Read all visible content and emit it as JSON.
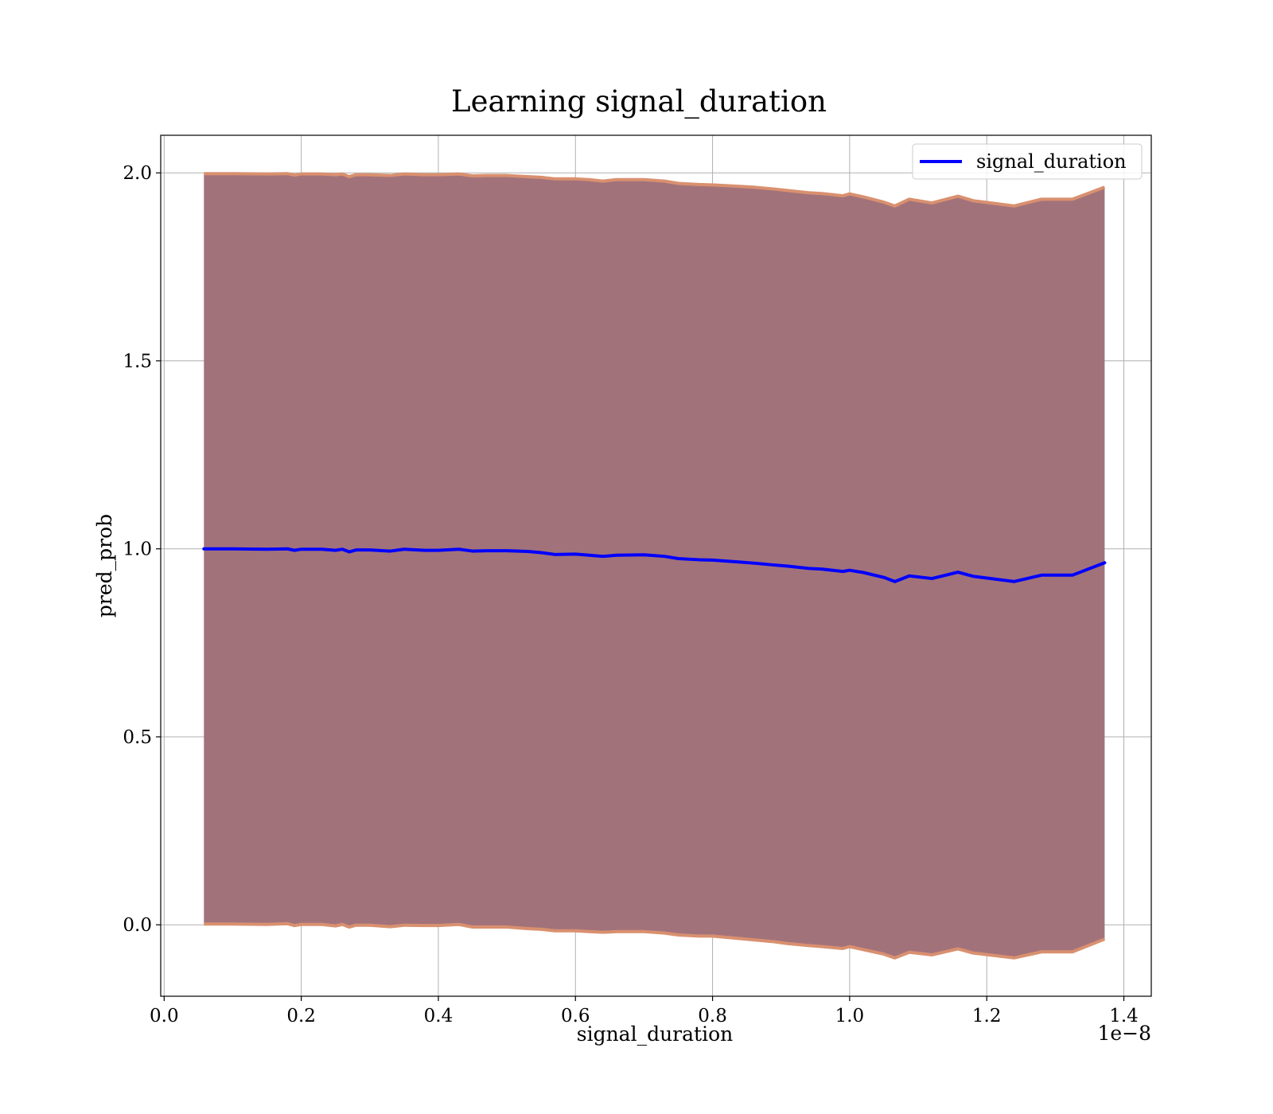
{
  "chart_data": {
    "type": "area",
    "title": "Learning signal_duration",
    "xlabel": "signal_duration",
    "ylabel": "pred_prob",
    "x_offset_label": "1e−8",
    "xlim": [
      -0.005,
      1.44
    ],
    "ylim": [
      -0.19,
      2.1
    ],
    "xticks": [
      0.0,
      0.2,
      0.4,
      0.6,
      0.8,
      1.0,
      1.2,
      1.4
    ],
    "xtick_labels": [
      "0.0",
      "0.2",
      "0.4",
      "0.6",
      "0.8",
      "1.0",
      "1.2",
      "1.4"
    ],
    "yticks": [
      0.0,
      0.5,
      1.0,
      1.5,
      2.0
    ],
    "ytick_labels": [
      "0.0",
      "0.5",
      "1.0",
      "1.5",
      "2.0"
    ],
    "grid": true,
    "legend_position": "top-right",
    "colors": {
      "line": "#0000ff",
      "band_fill": "#a2727b",
      "band_edge": "#d9906f",
      "grid": "#b0b0b0"
    },
    "series": [
      {
        "name": "signal_duration",
        "x": [
          0.058,
          0.1,
          0.15,
          0.18,
          0.19,
          0.2,
          0.23,
          0.25,
          0.26,
          0.27,
          0.28,
          0.3,
          0.33,
          0.35,
          0.38,
          0.4,
          0.43,
          0.45,
          0.47,
          0.5,
          0.53,
          0.55,
          0.57,
          0.6,
          0.62,
          0.64,
          0.66,
          0.7,
          0.73,
          0.75,
          0.78,
          0.8,
          0.83,
          0.86,
          0.89,
          0.91,
          0.94,
          0.96,
          0.99,
          1.0,
          1.02,
          1.05,
          1.066,
          1.087,
          1.12,
          1.158,
          1.18,
          1.24,
          1.28,
          1.325,
          1.372
        ],
        "y": [
          1.0,
          1.0,
          0.999,
          1.0,
          0.996,
          0.999,
          0.999,
          0.996,
          0.999,
          0.992,
          0.997,
          0.997,
          0.994,
          0.999,
          0.996,
          0.996,
          0.999,
          0.994,
          0.995,
          0.995,
          0.993,
          0.99,
          0.985,
          0.986,
          0.983,
          0.98,
          0.983,
          0.984,
          0.98,
          0.974,
          0.971,
          0.97,
          0.966,
          0.962,
          0.957,
          0.954,
          0.948,
          0.946,
          0.94,
          0.943,
          0.937,
          0.924,
          0.913,
          0.928,
          0.921,
          0.938,
          0.927,
          0.913,
          0.93,
          0.93,
          0.963
        ],
        "band_lower": [
          0.002,
          0.002,
          0.001,
          0.003,
          -0.002,
          0.001,
          0.001,
          -0.003,
          0.001,
          -0.006,
          -0.001,
          -0.001,
          -0.005,
          -0.001,
          -0.002,
          -0.002,
          0.001,
          -0.006,
          -0.006,
          -0.006,
          -0.01,
          -0.012,
          -0.016,
          -0.016,
          -0.018,
          -0.02,
          -0.018,
          -0.018,
          -0.022,
          -0.027,
          -0.03,
          -0.03,
          -0.035,
          -0.04,
          -0.045,
          -0.05,
          -0.055,
          -0.058,
          -0.063,
          -0.058,
          -0.066,
          -0.078,
          -0.088,
          -0.073,
          -0.08,
          -0.064,
          -0.075,
          -0.088,
          -0.072,
          -0.072,
          -0.038
        ],
        "band_upper": [
          1.998,
          1.998,
          1.997,
          1.998,
          1.994,
          1.997,
          1.997,
          1.995,
          1.997,
          1.99,
          1.995,
          1.995,
          1.993,
          1.997,
          1.995,
          1.995,
          1.997,
          1.992,
          1.993,
          1.993,
          1.99,
          1.988,
          1.984,
          1.984,
          1.982,
          1.978,
          1.982,
          1.982,
          1.978,
          1.972,
          1.969,
          1.968,
          1.965,
          1.962,
          1.957,
          1.953,
          1.947,
          1.945,
          1.939,
          1.944,
          1.936,
          1.922,
          1.912,
          1.93,
          1.92,
          1.938,
          1.926,
          1.912,
          1.93,
          1.93,
          1.962
        ]
      }
    ]
  }
}
